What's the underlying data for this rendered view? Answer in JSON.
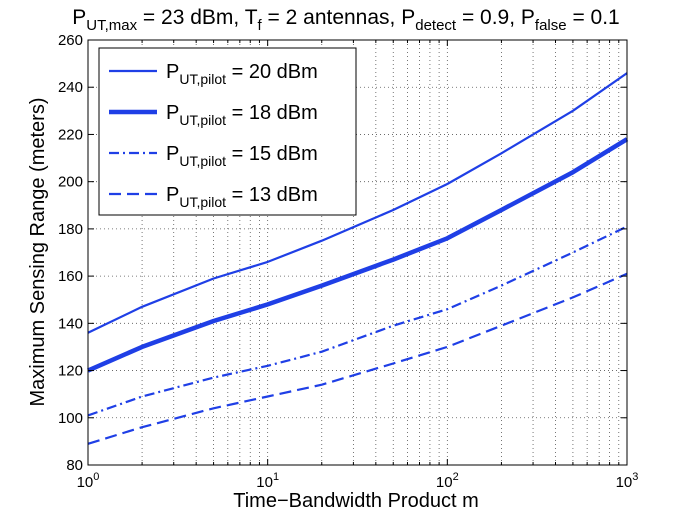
{
  "chart_data": {
    "type": "line",
    "title": {
      "segments": [
        {
          "text": "P",
          "style": "normal"
        },
        {
          "text": "UT,max",
          "style": "sub"
        },
        {
          "text": " = 23 dBm, T",
          "style": "normal"
        },
        {
          "text": "f",
          "style": "sub"
        },
        {
          "text": " = 2 antennas, P",
          "style": "normal"
        },
        {
          "text": "detect",
          "style": "sub"
        },
        {
          "text": " = 0.9, P",
          "style": "normal"
        },
        {
          "text": "false",
          "style": "sub"
        },
        {
          "text": " = 0.1",
          "style": "normal"
        }
      ]
    },
    "xlabel": "Time−Bandwidth Product m",
    "ylabel": "Maximum Sensing Range (meters)",
    "xscale": "log",
    "xlim": [
      1,
      1000
    ],
    "ylim": [
      80,
      260
    ],
    "grid": true,
    "x_ticks": [
      {
        "value": 1,
        "base": "10",
        "exp": "0"
      },
      {
        "value": 10,
        "base": "10",
        "exp": "1"
      },
      {
        "value": 100,
        "base": "10",
        "exp": "2"
      },
      {
        "value": 1000,
        "base": "10",
        "exp": "3"
      }
    ],
    "y_ticks": [
      80,
      100,
      120,
      140,
      160,
      180,
      200,
      220,
      240,
      260
    ],
    "legend_position": "top-left",
    "x": [
      1,
      2,
      5,
      10,
      20,
      50,
      100,
      200,
      500,
      1000
    ],
    "series": [
      {
        "name_main": "P",
        "name_sub": "UT,pilot",
        "name_tail": " = 20 dBm",
        "color": "#1f3fe6",
        "style": "solid",
        "width": 2.2,
        "values": [
          136,
          147,
          159,
          166,
          175,
          188,
          199,
          212,
          230,
          246
        ]
      },
      {
        "name_main": "P",
        "name_sub": "UT,pilot",
        "name_tail": " = 18 dBm",
        "color": "#1f3fe6",
        "style": "solid",
        "width": 4.5,
        "values": [
          120,
          130,
          141,
          148,
          156,
          167,
          176,
          188,
          204,
          218
        ]
      },
      {
        "name_main": "P",
        "name_sub": "UT,pilot",
        "name_tail": " = 15 dBm",
        "color": "#1f3fe6",
        "style": "dashdot",
        "width": 2.2,
        "values": [
          101,
          109,
          117,
          122,
          128,
          139,
          146,
          156,
          170,
          181
        ]
      },
      {
        "name_main": "P",
        "name_sub": "UT,pilot",
        "name_tail": " = 13 dBm",
        "color": "#1f3fe6",
        "style": "dashed",
        "width": 2.2,
        "values": [
          89,
          96,
          104,
          109,
          114,
          123,
          130,
          139,
          151,
          161
        ]
      }
    ]
  }
}
